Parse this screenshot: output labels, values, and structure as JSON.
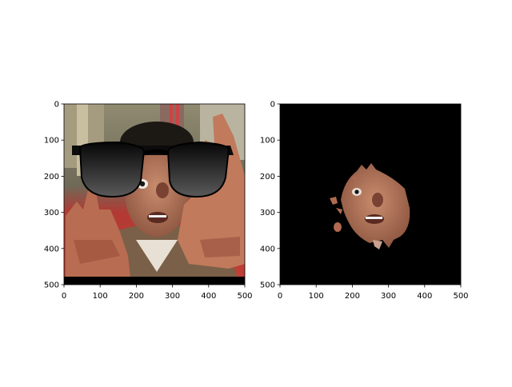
{
  "chart_data": [
    {
      "type": "image",
      "content": "photo of a man's face with both hands raised, wearing black sunglasses overlay",
      "xlim": [
        0,
        500
      ],
      "ylim": [
        500,
        0
      ],
      "xticks": [
        0,
        100,
        200,
        300,
        400,
        500
      ],
      "yticks": [
        0,
        100,
        200,
        300,
        400,
        500
      ],
      "xtick_labels": [
        "0",
        "100",
        "200",
        "300",
        "400",
        "500"
      ],
      "ytick_labels": [
        "0",
        "100",
        "200",
        "300",
        "400",
        "500"
      ],
      "colors": {
        "background_red": "#b53a36",
        "skin": "#b06a50",
        "glasses": "#151515",
        "building": "#9a9278"
      }
    },
    {
      "type": "image",
      "content": "segmentation mask: face region visible on black background",
      "xlim": [
        0,
        500
      ],
      "ylim": [
        500,
        0
      ],
      "xticks": [
        0,
        100,
        200,
        300,
        400,
        500
      ],
      "yticks": [
        0,
        100,
        200,
        300,
        400,
        500
      ],
      "xtick_labels": [
        "0",
        "100",
        "200",
        "300",
        "400",
        "500"
      ],
      "ytick_labels": [
        "0",
        "100",
        "200",
        "300",
        "400",
        "500"
      ],
      "colors": {
        "mask_background": "#000000",
        "skin": "#b06a50"
      }
    }
  ]
}
